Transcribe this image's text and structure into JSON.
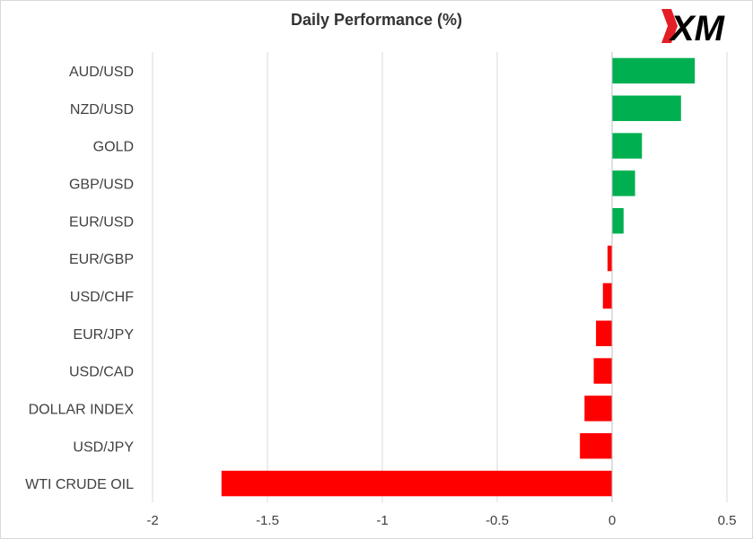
{
  "chart_data": {
    "type": "bar",
    "orientation": "horizontal",
    "title": "Daily Performance (%)",
    "xlabel": "",
    "ylabel": "",
    "xlim": [
      -2,
      0.5
    ],
    "xticks": [
      -2,
      -1.5,
      -1,
      -0.5,
      0,
      0.5
    ],
    "xtick_labels": [
      "-2",
      "-1.5",
      "-1",
      "-0.5",
      "0",
      "0.5"
    ],
    "grid": "vertical",
    "legend": "none",
    "categories": [
      "AUD/USD",
      "NZD/USD",
      "GOLD",
      "GBP/USD",
      "EUR/USD",
      "EUR/GBP",
      "USD/CHF",
      "EUR/JPY",
      "USD/CAD",
      "DOLLAR INDEX",
      "USD/JPY",
      "WTI CRUDE OIL"
    ],
    "values": [
      0.36,
      0.3,
      0.13,
      0.1,
      0.05,
      -0.02,
      -0.04,
      -0.07,
      -0.08,
      -0.12,
      -0.14,
      -1.7
    ],
    "colors": {
      "positive": "#00b050",
      "negative": "#ff0000"
    }
  },
  "branding": {
    "logo_text": "XM",
    "logo_colors": {
      "text": "#000000",
      "accent": "#e41e25"
    }
  }
}
